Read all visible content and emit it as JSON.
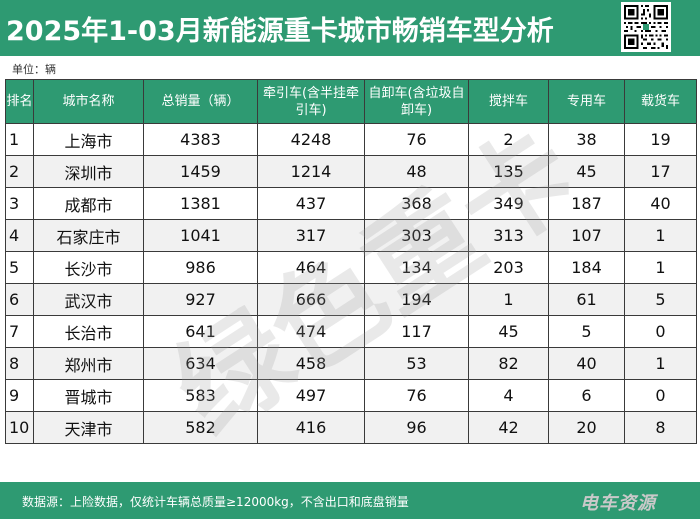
{
  "header": {
    "title": "2025年1-03月新能源重卡城市畅销车型分析",
    "qr_code_icon": "qr-code-icon"
  },
  "unit_label": "单位：辆",
  "table": {
    "columns": [
      "排名",
      "城市名称",
      "总销量（辆）",
      "牵引车(含半挂牵引车)",
      "自卸车(含垃圾自卸车)",
      "搅拌车",
      "专用车",
      "载货车"
    ],
    "rows": [
      [
        "1",
        "上海市",
        "4383",
        "4248",
        "76",
        "2",
        "38",
        "19"
      ],
      [
        "2",
        "深圳市",
        "1459",
        "1214",
        "48",
        "135",
        "45",
        "17"
      ],
      [
        "3",
        "成都市",
        "1381",
        "437",
        "368",
        "349",
        "187",
        "40"
      ],
      [
        "4",
        "石家庄市",
        "1041",
        "317",
        "303",
        "313",
        "107",
        "1"
      ],
      [
        "5",
        "长沙市",
        "986",
        "464",
        "134",
        "203",
        "184",
        "1"
      ],
      [
        "6",
        "武汉市",
        "927",
        "666",
        "194",
        "1",
        "61",
        "5"
      ],
      [
        "7",
        "长治市",
        "641",
        "474",
        "117",
        "45",
        "5",
        "0"
      ],
      [
        "8",
        "郑州市",
        "634",
        "458",
        "53",
        "82",
        "40",
        "1"
      ],
      [
        "9",
        "晋城市",
        "583",
        "497",
        "76",
        "4",
        "6",
        "0"
      ],
      [
        "10",
        "天津市",
        "582",
        "416",
        "96",
        "42",
        "20",
        "8"
      ]
    ]
  },
  "watermark": "绿色重卡",
  "footer": {
    "note": "数据源：上险数据，仅统计车辆总质量≥12000kg，不含出口和底盘销量",
    "brand": "电车资源"
  },
  "colors": {
    "brand_green": "#2e9a72",
    "row_alt": "#f1f1f1"
  }
}
